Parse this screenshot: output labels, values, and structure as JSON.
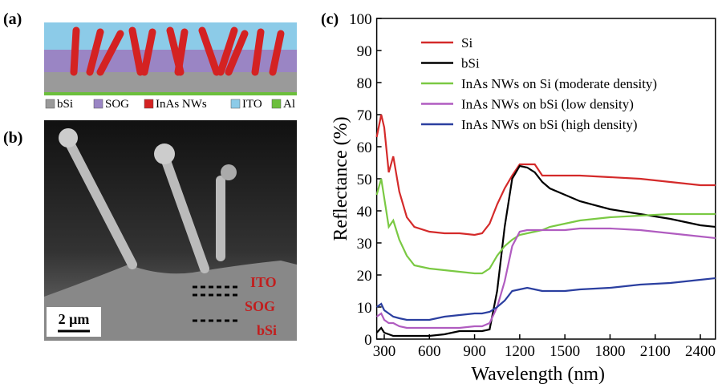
{
  "figure": {
    "panel_labels": [
      "(a)",
      "(b)",
      "(c)"
    ],
    "schematic_legend": [
      "bSi",
      "SOG",
      "InAs NWs",
      "ITO",
      "Al"
    ],
    "sem_labels": [
      "ITO",
      "SOG",
      "bSi"
    ],
    "scale_bar": "2 μm"
  },
  "chart_data": {
    "type": "line",
    "x_label": "Wavelength (nm)",
    "y_label": "Reflectance (%)",
    "x": [
      250,
      280,
      300,
      330,
      360,
      400,
      450,
      500,
      600,
      700,
      800,
      900,
      950,
      1000,
      1050,
      1100,
      1150,
      1200,
      1250,
      1300,
      1350,
      1400,
      1500,
      1600,
      1800,
      2000,
      2200,
      2400,
      2500
    ],
    "series": [
      {
        "name": "Si",
        "color": "#d42a2a",
        "values": [
          63,
          70,
          66,
          52,
          57,
          46,
          38,
          35,
          33.5,
          33,
          33,
          32.5,
          33,
          36,
          42,
          47,
          51,
          54.5,
          54.5,
          54.5,
          51,
          51,
          51,
          51,
          50.5,
          50,
          49,
          48,
          48
        ]
      },
      {
        "name": "bSi",
        "color": "#000000",
        "values": [
          2,
          3.5,
          2,
          1.5,
          1,
          1,
          1,
          1,
          1,
          1.5,
          2.5,
          2.5,
          2.5,
          3,
          15,
          35,
          50,
          54,
          53.5,
          52,
          49,
          47,
          45,
          43,
          40.5,
          39,
          37.5,
          35.5,
          35
        ]
      },
      {
        "name": "InAs NWs on Si (moderate density)",
        "color": "#7ac943",
        "values": [
          45,
          50,
          44,
          35,
          37,
          31,
          26,
          23,
          22,
          21.5,
          21,
          20.5,
          20.5,
          22,
          26,
          29,
          31,
          32.5,
          33,
          33.5,
          34,
          35,
          36,
          37,
          38,
          38.5,
          39,
          39,
          39
        ]
      },
      {
        "name": "InAs NWs on bSi (low density)",
        "color": "#b05cc0",
        "values": [
          7,
          8,
          6,
          5,
          5,
          4,
          3.5,
          3.5,
          3.5,
          3.5,
          3.5,
          4,
          4,
          5,
          10,
          18,
          29,
          33.5,
          34,
          34,
          34,
          34,
          34,
          34.5,
          34.5,
          34,
          33,
          32,
          31.5
        ]
      },
      {
        "name": "InAs NWs on bSi (high density)",
        "color": "#2b3fa0",
        "values": [
          10,
          11,
          9,
          8,
          7,
          6.5,
          6,
          6,
          6,
          7,
          7.5,
          8,
          8,
          8.5,
          10,
          12,
          15,
          15.5,
          16,
          15.5,
          15,
          15,
          15,
          15.5,
          16,
          17,
          17.5,
          18.5,
          19
        ]
      }
    ],
    "xlim": [
      250,
      2500
    ],
    "xticks": [
      300,
      600,
      900,
      1200,
      1500,
      1800,
      2100,
      2400
    ],
    "ylim": [
      0,
      100
    ],
    "yticks": [
      0,
      10,
      20,
      30,
      40,
      50,
      60,
      70,
      80,
      90,
      100
    ],
    "legend": "upper left"
  }
}
